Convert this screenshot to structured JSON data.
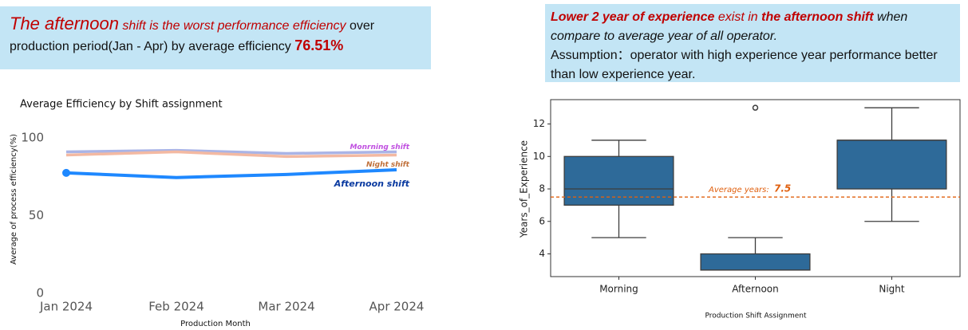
{
  "callouts": [
    {
      "parts": [
        {
          "text": "The afternoon",
          "style": "em-big"
        },
        {
          "text": " shift is the worst performance efficiency",
          "style": "em"
        },
        {
          "text": "  over production period(Jan - Apr) by average efficiency ",
          "style": "plain"
        },
        {
          "text": "76.51%",
          "style": "strong"
        }
      ]
    },
    {
      "parts": [
        {
          "text": "Lower 2 year of experience",
          "style": "strong-em"
        },
        {
          "text": " exist in ",
          "style": "em"
        },
        {
          "text": "the afternoon shift",
          "style": "strong-em"
        },
        {
          "text": " when compare to average year of all operator.",
          "style": "italic"
        },
        {
          "text": "Assumption：operator with high experience year performance better than low experience year.",
          "style": "block"
        }
      ]
    }
  ],
  "chart_data": [
    {
      "type": "line",
      "title": "Average Efficiency by Shift assignment",
      "x_label": "Production Month",
      "y_label": "Average of process efficiency(%)",
      "categories": [
        "Jan 2024",
        "Feb 2024",
        "Mar 2024",
        "Apr 2024"
      ],
      "ylim": [
        0,
        100
      ],
      "yticks": [
        0,
        50,
        100
      ],
      "series": [
        {
          "name": "Monrning shift",
          "color": "#aab4e6",
          "values": [
            91,
            92,
            90,
            91
          ]
        },
        {
          "name": "Night shift",
          "color": "#f3b9a2",
          "values": [
            89,
            91,
            88,
            89
          ]
        },
        {
          "name": "Afternoon shift",
          "color": "#1e88ff",
          "values": [
            77.5,
            74.5,
            76.5,
            79.5
          ]
        }
      ]
    },
    {
      "type": "box",
      "x_label": "Production Shift Assignment",
      "y_label": "Years_of_Experience",
      "categories": [
        "Morning",
        "Afternoon",
        "Night"
      ],
      "ylim": [
        2.6,
        13.5
      ],
      "yticks": [
        4,
        6,
        8,
        10,
        12
      ],
      "color": "#2e6a99",
      "boxes": [
        {
          "whislo": 5,
          "q1": 7,
          "med": 8,
          "q3": 10,
          "whishi": 11,
          "fliers": []
        },
        {
          "whislo": 3,
          "q1": 3,
          "med": 3,
          "q3": 4,
          "whishi": 5,
          "fliers": [
            13
          ]
        },
        {
          "whislo": 6,
          "q1": 8,
          "med": 11,
          "q3": 11,
          "whishi": 13,
          "fliers": []
        }
      ],
      "reference": {
        "value": 7.5,
        "label": "Average years:",
        "color": "#e0600f"
      }
    }
  ]
}
